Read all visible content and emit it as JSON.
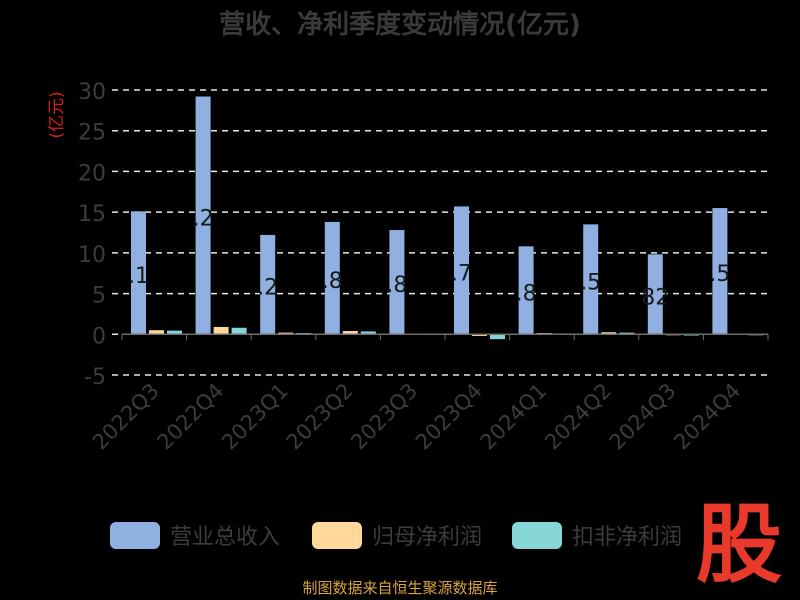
{
  "chart_data": {
    "type": "bar",
    "title": "营收、净利季度变动情况(亿元)",
    "ylabel": "(亿元)",
    "xlabel": "",
    "ylim": [
      -5,
      30
    ],
    "yticks": [
      30,
      25,
      20,
      15,
      10,
      5,
      0,
      -5
    ],
    "grid": true,
    "legend_position": "bottom",
    "categories": [
      "2022Q3",
      "2022Q4",
      "2023Q1",
      "2023Q2",
      "2023Q3",
      "2023Q4",
      "2024Q1",
      "2024Q2",
      "2024Q3",
      "2024Q4"
    ],
    "series": [
      {
        "name": "营业总收入",
        "color": "#8fb0e0",
        "values": [
          15.1,
          29.2,
          12.2,
          13.8,
          12.8,
          15.7,
          10.8,
          13.5,
          9.82,
          15.5
        ],
        "labels": [
          ".1",
          ".2",
          ".2",
          ".8",
          ".8",
          ".7",
          ".8",
          ".5",
          "82",
          ".5"
        ]
      },
      {
        "name": "归母净利润",
        "color": "#ffd79a",
        "values": [
          0.5,
          0.9,
          0.2,
          0.4,
          0.05,
          -0.2,
          0.15,
          0.25,
          -0.1,
          0.05
        ]
      },
      {
        "name": "扣非净利润",
        "color": "#86d6d8",
        "values": [
          0.45,
          0.8,
          0.15,
          0.35,
          0.03,
          -0.6,
          0.1,
          0.2,
          -0.15,
          -0.1
        ]
      }
    ]
  },
  "watermark": "股",
  "source": "制图数据来自恒生聚源数据库"
}
